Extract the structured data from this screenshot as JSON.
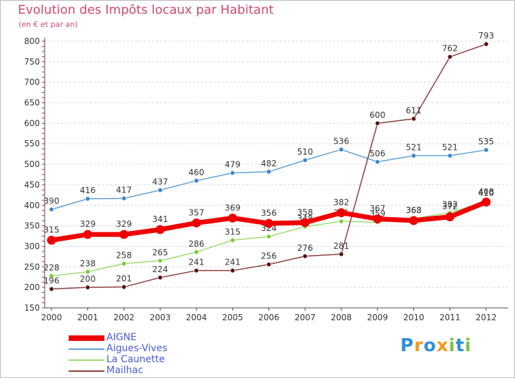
{
  "header": {
    "title": "Evolution des Impôts locaux par Habitant",
    "subtitle": "(en € et par an)"
  },
  "logo": {
    "text": "Proxiti",
    "letters": [
      {
        "ch": "P",
        "color": "#2f8fd8"
      },
      {
        "ch": "r",
        "color": "#f29a1f"
      },
      {
        "ch": "o",
        "color": "#2f8fd8"
      },
      {
        "ch": "x",
        "color": "#f29a1f"
      },
      {
        "ch": "i",
        "color": "#7cc242"
      },
      {
        "ch": "t",
        "color": "#2f8fd8"
      },
      {
        "ch": "i",
        "color": "#7cc242"
      }
    ]
  },
  "chart_data": {
    "type": "line",
    "title": "Evolution des Impôts locaux par Habitant",
    "subtitle": "(en € et par an)",
    "xlabel": "",
    "ylabel": "",
    "categories": [
      "2000",
      "2001",
      "2002",
      "2003",
      "2004",
      "2005",
      "2006",
      "2007",
      "2008",
      "2009",
      "2010",
      "2011",
      "2012"
    ],
    "ylim": [
      150,
      800
    ],
    "yticks": [
      150,
      200,
      250,
      300,
      350,
      400,
      450,
      500,
      550,
      600,
      650,
      700,
      750,
      800
    ],
    "grid": "horizontal-dashed",
    "legend_position": "bottom-left",
    "series": [
      {
        "name": "Aigues-Vives",
        "color": "#5f9fd4",
        "marker_color": "#3a86c8",
        "values": [
          390,
          416,
          417,
          437,
          460,
          479,
          482,
          510,
          536,
          506,
          521,
          521,
          535
        ],
        "labels": [
          "390",
          "416",
          "417",
          "437",
          "460",
          "479",
          "482",
          "510",
          "536",
          "506",
          "521",
          "521",
          "535"
        ],
        "emphasis": false
      },
      {
        "name": "La Caunette",
        "color": "#9bdc70",
        "marker_color": "#7ccb3c",
        "values": [
          228,
          238,
          258,
          265,
          286,
          315,
          324,
          348,
          361,
          359,
          368,
          382,
          410
        ],
        "labels": [
          "228",
          "238",
          "258",
          "265",
          "286",
          "315",
          "324",
          "348",
          "361",
          "359",
          "368",
          "382",
          "410"
        ],
        "emphasis": false
      },
      {
        "name": "Mailhac",
        "color": "#8b3a3a",
        "marker_color": "#5a1010",
        "values": [
          196,
          200,
          201,
          224,
          241,
          241,
          256,
          276,
          281,
          600,
          611,
          762,
          793
        ],
        "labels": [
          "196",
          "200",
          "201",
          "224",
          "241",
          "241",
          "256",
          "276",
          "281",
          "600",
          "611",
          "762",
          "793"
        ],
        "emphasis": false
      },
      {
        "name": "AIGNE",
        "color": "#ee0000",
        "marker_color": "#ee0000",
        "values": [
          315,
          329,
          329,
          341,
          357,
          369,
          356,
          358,
          382,
          367,
          363,
          372,
          408
        ],
        "labels": [
          "315",
          "329",
          "329",
          "341",
          "357",
          "369",
          "356",
          "358",
          "382",
          "367",
          "363",
          "372",
          "408"
        ],
        "emphasis": true
      }
    ]
  }
}
